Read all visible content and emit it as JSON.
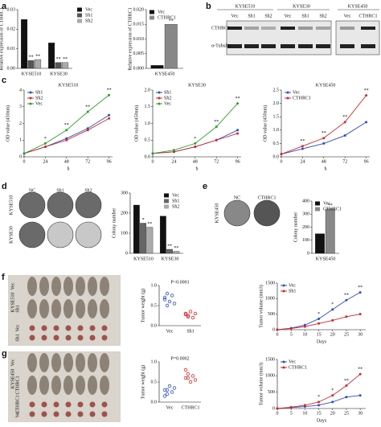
{
  "panel_labels": [
    "a",
    "b",
    "c",
    "d",
    "e",
    "f",
    "g"
  ],
  "blot": {
    "cell_lines": [
      "KYSE510",
      "KYSE30",
      "KYSE450"
    ],
    "lanes": [
      "Vec",
      "Sh1",
      "Sh2",
      "Vec",
      "Sh1",
      "Sh2",
      "Vec",
      "CTHRC1"
    ],
    "rows": [
      "CTHRC1",
      "α-Tubulin"
    ]
  },
  "colony_d": {
    "columns": [
      "NC",
      "Sh1",
      "Sh2"
    ],
    "rows": [
      "KYSE510",
      "KYSE30"
    ]
  },
  "colony_e": {
    "cell_line": "KYSE450",
    "columns": [
      "NC",
      "CTHRC1"
    ]
  },
  "mice_f": {
    "group_top": "Vec",
    "cell_line": "KYSE510",
    "group_bottom": "Sh1",
    "tumor_rows": [
      "Vec",
      "Sh1"
    ]
  },
  "mice_g": {
    "group_top": "Vec",
    "cell_line": "KYSE450",
    "group_bottom": "CTHRC1",
    "tumor_rows": [
      "CTHRC1",
      "Vec"
    ]
  },
  "chart_data": [
    {
      "type": "bar",
      "ylabel": "Relative expression of CTHRC1",
      "categories": [
        "KYSE510",
        "KYSE30"
      ],
      "series": [
        {
          "name": "Vec",
          "color": "#111111",
          "values": [
            0.025,
            0.013
          ]
        },
        {
          "name": "Sh1",
          "color": "#555555",
          "values": [
            0.004,
            0.003
          ],
          "significance": [
            "**",
            "**"
          ]
        },
        {
          "name": "Sh2",
          "color": "#aaaaaa",
          "values": [
            0.0045,
            0.003
          ],
          "significance": [
            "**",
            "**"
          ]
        }
      ],
      "ylim": [
        0,
        0.03
      ],
      "yticks": [
        {
          "value": 0,
          "label": "0.00"
        },
        {
          "value": 0.01,
          "label": "0.01"
        },
        {
          "value": 0.02,
          "label": "0.02"
        },
        {
          "value": 0.03,
          "label": "0.03"
        }
      ],
      "legend": "right"
    },
    {
      "type": "bar",
      "ylabel": "Relative expression of CTHRC1",
      "categories": [
        "KYSE450"
      ],
      "series": [
        {
          "name": "Vec",
          "color": "#111111",
          "values": [
            0.001
          ]
        },
        {
          "name": "CTHRC1",
          "color": "#888888",
          "values": [
            0.015
          ],
          "significance": [
            "**"
          ]
        }
      ],
      "ylim": [
        0,
        0.02
      ],
      "yticks": [
        {
          "value": 0,
          "label": "0.000"
        },
        {
          "value": 0.005,
          "label": "0.005"
        },
        {
          "value": 0.01,
          "label": "0.010"
        },
        {
          "value": 0.015,
          "label": "0.015"
        },
        {
          "value": 0.02,
          "label": "0.020"
        }
      ],
      "legend": "upper-left"
    },
    {
      "type": "line",
      "title": "KYSE510",
      "ylabel": "OD value (450nm)",
      "xlabel": "h",
      "x": [
        0,
        24,
        48,
        72,
        96
      ],
      "xlim": [
        0,
        100
      ],
      "xticks": [
        0,
        24,
        48,
        72,
        96
      ],
      "ylim": [
        0,
        4
      ],
      "yticks": [
        0,
        1,
        2,
        3,
        4
      ],
      "legend": "upper-left",
      "series": [
        {
          "name": "Sh1",
          "color": "#2b4fc4",
          "values": [
            0.2,
            0.6,
            1.1,
            1.7,
            2.5
          ]
        },
        {
          "name": "Sh2",
          "color": "#d62728",
          "values": [
            0.2,
            0.6,
            1.0,
            1.6,
            2.3
          ]
        },
        {
          "name": "Vec",
          "color": "#2ca02c",
          "values": [
            0.2,
            0.8,
            1.6,
            2.7,
            3.7
          ],
          "significance": [
            null,
            "*",
            "**",
            "**",
            "**"
          ]
        }
      ]
    },
    {
      "type": "line",
      "title": "KYSE30",
      "ylabel": "OD value (450nm)",
      "xlabel": "h",
      "x": [
        0,
        24,
        48,
        72,
        96
      ],
      "xlim": [
        0,
        100
      ],
      "xticks": [
        0,
        24,
        48,
        72,
        96
      ],
      "ylim": [
        0,
        2
      ],
      "yticks": [
        {
          "value": 0,
          "label": "0.0"
        },
        {
          "value": 0.5,
          "label": "0.5"
        },
        {
          "value": 1,
          "label": "1.0"
        },
        {
          "value": 1.5,
          "label": "1.5"
        },
        {
          "value": 2,
          "label": "2.0"
        }
      ],
      "legend": "upper-left",
      "series": [
        {
          "name": "Sh1",
          "color": "#2b4fc4",
          "values": [
            0.1,
            0.15,
            0.3,
            0.5,
            0.8
          ]
        },
        {
          "name": "Sh2",
          "color": "#d62728",
          "values": [
            0.1,
            0.15,
            0.3,
            0.5,
            0.7
          ]
        },
        {
          "name": "Vec",
          "color": "#2ca02c",
          "values": [
            0.1,
            0.2,
            0.4,
            0.9,
            1.6
          ],
          "significance": [
            null,
            null,
            "*",
            "**",
            "**"
          ]
        }
      ]
    },
    {
      "type": "line",
      "title": "KYSE450",
      "ylabel": "OD value (450nm)",
      "xlabel": "h",
      "x": [
        0,
        24,
        48,
        72,
        96
      ],
      "xlim": [
        0,
        100
      ],
      "xticks": [
        0,
        24,
        48,
        72,
        96
      ],
      "ylim": [
        0,
        2.5
      ],
      "yticks": [
        {
          "value": 0,
          "label": "0.0"
        },
        {
          "value": 0.5,
          "label": "0.5"
        },
        {
          "value": 1,
          "label": "1.0"
        },
        {
          "value": 1.5,
          "label": "1.5"
        },
        {
          "value": 2,
          "label": "2.0"
        },
        {
          "value": 2.5,
          "label": "2.5"
        }
      ],
      "legend": "upper-left",
      "series": [
        {
          "name": "Vec",
          "color": "#2b4fc4",
          "values": [
            0.1,
            0.3,
            0.5,
            0.8,
            1.3
          ]
        },
        {
          "name": "CTHRC1",
          "color": "#d62728",
          "values": [
            0.1,
            0.4,
            0.7,
            1.3,
            2.3
          ],
          "significance": [
            null,
            "**",
            "**",
            "**",
            "**"
          ]
        }
      ]
    },
    {
      "type": "bar",
      "ylabel": "Colony number",
      "categories": [
        "KYSE510",
        "KYSE30"
      ],
      "series": [
        {
          "name": "Vec",
          "color": "#111111",
          "values": [
            240,
            185
          ]
        },
        {
          "name": "Sh1",
          "color": "#666666",
          "values": [
            150,
            20
          ],
          "significance": [
            "*",
            "**"
          ]
        },
        {
          "name": "Sh2",
          "color": "#aaaaaa",
          "values": [
            130,
            10
          ],
          "significance": [
            "**",
            "**"
          ]
        }
      ],
      "ylim": [
        0,
        300
      ],
      "yticks": [
        0,
        100,
        200,
        300
      ],
      "legend": "upper-right"
    },
    {
      "type": "bar",
      "ylabel": "Colony number",
      "categories": [
        "KYSE450"
      ],
      "series": [
        {
          "name": "Vec",
          "color": "#111111",
          "values": [
            150
          ]
        },
        {
          "name": "CTHRC1",
          "color": "#888888",
          "values": [
            340
          ],
          "significance": [
            "**"
          ]
        }
      ],
      "ylim": [
        0,
        400
      ],
      "yticks": [
        0,
        100,
        200,
        300,
        400
      ],
      "legend": "upper-left"
    },
    {
      "type": "dot",
      "ylabel": "Tumor weight (g)",
      "annotation": "P<0.0001",
      "categories": [
        "Vec",
        "Sh1"
      ],
      "groups": [
        {
          "color": "#2b4fc4",
          "values": [
            0.7,
            0.8,
            0.6,
            0.75,
            0.55,
            0.65,
            0.5
          ]
        },
        {
          "color": "#d62728",
          "values": [
            0.3,
            0.25,
            0.35,
            0.2,
            0.3,
            0.28,
            0.22
          ]
        }
      ],
      "ylim": [
        0,
        1
      ],
      "yticks": [
        {
          "value": 0,
          "label": "0.0"
        },
        {
          "value": 0.5,
          "label": "0.5"
        },
        {
          "value": 1,
          "label": "1.0"
        }
      ]
    },
    {
      "type": "line",
      "ylabel": "Tumor volume (mm3)",
      "xlabel": "Days",
      "x": [
        0,
        5,
        10,
        15,
        20,
        25,
        30
      ],
      "xlim": [
        0,
        32
      ],
      "xticks": [
        0,
        5,
        10,
        15,
        20,
        25,
        30
      ],
      "ylim": [
        0,
        1500
      ],
      "yticks": [
        0,
        500,
        1000,
        1500
      ],
      "legend": "upper-left",
      "series": [
        {
          "name": "Vec",
          "color": "#2b4fc4",
          "values": [
            0,
            50,
            150,
            350,
            650,
            950,
            1200
          ],
          "significance": [
            null,
            null,
            null,
            "*",
            "*",
            "**",
            "**"
          ]
        },
        {
          "name": "Sh1",
          "color": "#d62728",
          "values": [
            0,
            40,
            100,
            200,
            300,
            420,
            500
          ]
        }
      ]
    },
    {
      "type": "dot",
      "ylabel": "Tumor weight (g)",
      "annotation": "P=0.0002",
      "categories": [
        "Vec",
        "CTHRC1"
      ],
      "groups": [
        {
          "color": "#2b4fc4",
          "values": [
            0.3,
            0.2,
            0.4,
            0.25,
            0.35,
            0.15,
            0.3
          ]
        },
        {
          "color": "#d62728",
          "values": [
            0.6,
            0.7,
            0.5,
            0.65,
            0.55,
            0.8,
            0.6
          ]
        }
      ],
      "ylim": [
        0,
        1
      ],
      "yticks": [
        {
          "value": 0,
          "label": "0.0"
        },
        {
          "value": 0.5,
          "label": "0.5"
        },
        {
          "value": 1,
          "label": "1.0"
        }
      ]
    },
    {
      "type": "line",
      "ylabel": "Tumor volume (mm3)",
      "xlabel": "Days",
      "x": [
        0,
        5,
        10,
        15,
        20,
        25,
        30
      ],
      "xlim": [
        0,
        32
      ],
      "xticks": [
        0,
        5,
        10,
        15,
        20,
        25,
        30
      ],
      "ylim": [
        0,
        1500
      ],
      "yticks": [
        0,
        500,
        1000,
        1500
      ],
      "legend": "upper-left",
      "series": [
        {
          "name": "Vec",
          "color": "#2b4fc4",
          "values": [
            0,
            30,
            60,
            100,
            200,
            350,
            400
          ]
        },
        {
          "name": "CTHRC1",
          "color": "#d62728",
          "values": [
            0,
            40,
            100,
            200,
            400,
            700,
            1050
          ],
          "significance": [
            null,
            null,
            null,
            "*",
            "*",
            "**",
            "**"
          ]
        }
      ]
    }
  ]
}
